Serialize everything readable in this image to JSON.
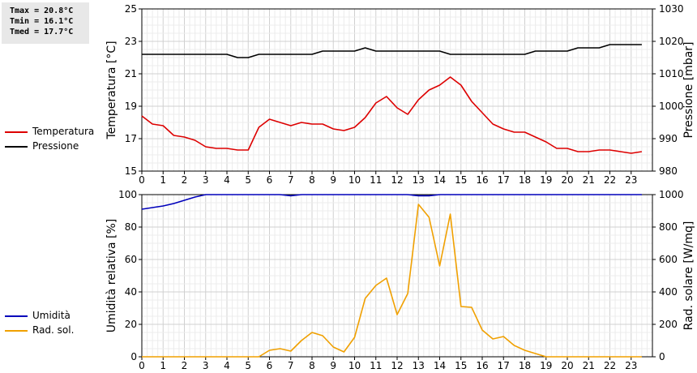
{
  "stats": {
    "tmax": "Tmax = 20.8°C",
    "tmin": "Tmin = 16.1°C",
    "tmed": "Tmed = 17.7°C"
  },
  "legends": {
    "top": [
      {
        "label": "Temperatura",
        "color": "#dd0000"
      },
      {
        "label": "Pressione",
        "color": "#000000"
      }
    ],
    "bottom": [
      {
        "label": "Umidità",
        "color": "#0000bb"
      },
      {
        "label": "Rad. sol.",
        "color": "#f0a000"
      }
    ]
  },
  "chart_data": [
    {
      "type": "line",
      "xlim": [
        0,
        24
      ],
      "x_ticks": [
        "0",
        "1",
        "2",
        "3",
        "4",
        "5",
        "6",
        "7",
        "8",
        "9",
        "10",
        "11",
        "12",
        "13",
        "14",
        "15",
        "16",
        "17",
        "18",
        "19",
        "20",
        "21",
        "22",
        "23"
      ],
      "ylabel": "Temperatura [°C]",
      "ylim": [
        15,
        25
      ],
      "y_ticks": [
        "15",
        "17",
        "19",
        "21",
        "23",
        "25"
      ],
      "y2label": "Pressione [mbar]",
      "y2lim": [
        980,
        1030
      ],
      "y2_ticks": [
        "980",
        "990",
        "1000",
        "1010",
        "1020",
        "1030"
      ],
      "grid": true,
      "series": [
        {
          "name": "Temperatura",
          "color": "#dd0000",
          "axis": "left",
          "x": [
            0,
            0.5,
            1,
            1.5,
            2,
            2.5,
            3,
            3.5,
            4,
            4.5,
            5,
            5.5,
            6,
            6.5,
            7,
            7.5,
            8,
            8.5,
            9,
            9.5,
            10,
            10.5,
            11,
            11.5,
            12,
            12.5,
            13,
            13.5,
            14,
            14.5,
            15,
            15.5,
            16,
            16.5,
            17,
            17.5,
            18,
            18.5,
            19,
            19.5,
            20,
            20.5,
            21,
            21.5,
            22,
            22.5,
            23,
            23.5
          ],
          "values": [
            18.4,
            17.9,
            17.8,
            17.2,
            17.1,
            16.9,
            16.5,
            16.4,
            16.4,
            16.3,
            16.3,
            17.7,
            18.2,
            18.0,
            17.8,
            18.0,
            17.9,
            17.9,
            17.6,
            17.5,
            17.7,
            18.3,
            19.2,
            19.6,
            18.9,
            18.5,
            19.4,
            20.0,
            20.3,
            20.8,
            20.3,
            19.3,
            18.6,
            17.9,
            17.6,
            17.4,
            17.4,
            17.1,
            16.8,
            16.4,
            16.4,
            16.2,
            16.2,
            16.3,
            16.3,
            16.2,
            16.1,
            16.2
          ]
        },
        {
          "name": "Pressione",
          "color": "#000000",
          "axis": "right",
          "x": [
            0,
            0.5,
            1,
            1.5,
            2,
            2.5,
            3,
            3.5,
            4,
            4.5,
            5,
            5.5,
            6,
            6.5,
            7,
            7.5,
            8,
            8.5,
            9,
            9.5,
            10,
            10.5,
            11,
            11.5,
            12,
            12.5,
            13,
            13.5,
            14,
            14.5,
            15,
            15.5,
            16,
            16.5,
            17,
            17.5,
            18,
            18.5,
            19,
            19.5,
            20,
            20.5,
            21,
            21.5,
            22,
            22.5,
            23,
            23.5
          ],
          "values": [
            1016,
            1016,
            1016,
            1016,
            1016,
            1016,
            1016,
            1016,
            1016,
            1015,
            1015,
            1016,
            1016,
            1016,
            1016,
            1016,
            1016,
            1017,
            1017,
            1017,
            1017,
            1018,
            1017,
            1017,
            1017,
            1017,
            1017,
            1017,
            1017,
            1016,
            1016,
            1016,
            1016,
            1016,
            1016,
            1016,
            1016,
            1017,
            1017,
            1017,
            1017,
            1018,
            1018,
            1018,
            1019,
            1019,
            1019,
            1019
          ]
        }
      ]
    },
    {
      "type": "line",
      "xlim": [
        0,
        24
      ],
      "x_ticks": [
        "0",
        "1",
        "2",
        "3",
        "4",
        "5",
        "6",
        "7",
        "8",
        "9",
        "10",
        "11",
        "12",
        "13",
        "14",
        "15",
        "16",
        "17",
        "18",
        "19",
        "20",
        "21",
        "22",
        "23"
      ],
      "ylabel": "Umidità relativa [%]",
      "ylim": [
        0,
        100
      ],
      "y_ticks": [
        "0",
        "20",
        "40",
        "60",
        "80",
        "100"
      ],
      "y2label": "Rad. solare [W/mq]",
      "y2lim": [
        0,
        1000
      ],
      "y2_ticks": [
        "0",
        "200",
        "400",
        "600",
        "800",
        "1000"
      ],
      "grid": true,
      "series": [
        {
          "name": "Umidità",
          "color": "#0000bb",
          "axis": "left",
          "x": [
            0,
            0.5,
            1,
            1.5,
            2,
            2.5,
            3,
            6.5,
            7,
            7.5,
            12.5,
            13,
            13.5,
            14,
            23.5
          ],
          "values": [
            91,
            92,
            93,
            94.5,
            96.5,
            98.5,
            100,
            100,
            99.3,
            100,
            100,
            99.3,
            99.3,
            100,
            100
          ]
        },
        {
          "name": "Rad. sol.",
          "color": "#f0a000",
          "axis": "right",
          "x": [
            0,
            0.5,
            1,
            1.5,
            2,
            2.5,
            3,
            3.5,
            4,
            4.5,
            5,
            5.5,
            6,
            6.5,
            7,
            7.5,
            8,
            8.5,
            9,
            9.5,
            10,
            10.5,
            11,
            11.5,
            12,
            12.5,
            13,
            13.5,
            14,
            14.5,
            15,
            15.5,
            16,
            16.5,
            17,
            17.5,
            18,
            18.5,
            19,
            19.5,
            20,
            20.5,
            21,
            21.5,
            22,
            22.5,
            23,
            23.5
          ],
          "values": [
            0,
            0,
            0,
            0,
            0,
            0,
            0,
            0,
            0,
            0,
            0,
            0,
            40,
            50,
            35,
            100,
            150,
            130,
            60,
            30,
            120,
            360,
            440,
            485,
            260,
            390,
            940,
            860,
            560,
            880,
            310,
            305,
            165,
            110,
            125,
            70,
            40,
            20,
            0,
            0,
            0,
            0,
            0,
            0,
            0,
            0,
            0,
            0
          ]
        }
      ]
    }
  ]
}
